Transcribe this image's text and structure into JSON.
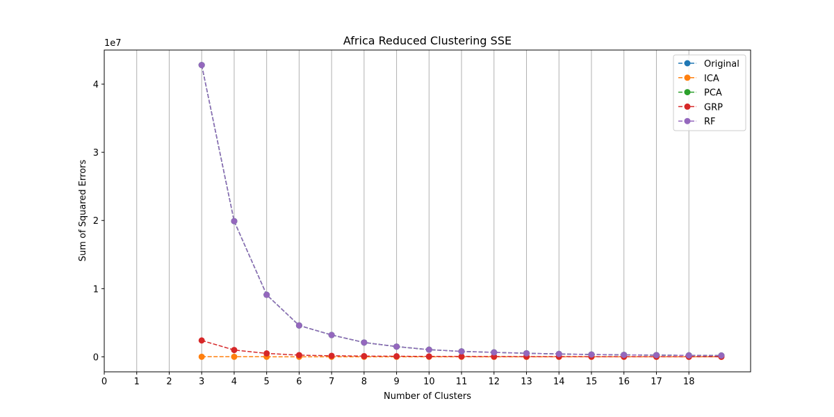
{
  "chart_data": {
    "type": "line",
    "title": "Africa Reduced Clustering SSE",
    "xlabel": "Number of Clusters",
    "ylabel": "Sum of Squared Errors",
    "y_offset_label": "1e7",
    "xlim": [
      0,
      19.9
    ],
    "ylim": [
      -2200000,
      45000000
    ],
    "xticks": [
      0,
      1,
      2,
      3,
      4,
      5,
      6,
      7,
      8,
      9,
      10,
      11,
      12,
      13,
      14,
      15,
      16,
      17,
      18
    ],
    "xtick_labels": [
      "0",
      "1",
      "2",
      "3",
      "4",
      "5",
      "6",
      "7",
      "8",
      "9",
      "10",
      "11",
      "12",
      "13",
      "14",
      "15",
      "16",
      "17",
      "18"
    ],
    "yticks": [
      0,
      10000000,
      20000000,
      30000000,
      40000000
    ],
    "ytick_labels": [
      "0",
      "1",
      "2",
      "3",
      "4"
    ],
    "grid": "vertical",
    "legend_position": "top-right",
    "x": [
      3,
      4,
      5,
      6,
      7,
      8,
      9,
      10,
      11,
      12,
      13,
      14,
      15,
      16,
      17,
      18,
      19
    ],
    "series": [
      {
        "name": "Original",
        "color": "#1f77b4",
        "values": [
          42800000,
          19900000,
          9100000,
          4600000,
          3200000,
          2100000,
          1500000,
          1050000,
          800000,
          650000,
          520000,
          420000,
          340000,
          290000,
          250000,
          220000,
          190000
        ]
      },
      {
        "name": "ICA",
        "color": "#ff7f0e",
        "values": [
          10000,
          9000,
          8000,
          7000,
          6000,
          5500,
          5000,
          4500,
          4000,
          3500,
          3000,
          2800,
          2600,
          2400,
          2200,
          2000,
          1800
        ]
      },
      {
        "name": "PCA",
        "color": "#2ca02c",
        "values": [
          42800000,
          19900000,
          9100000,
          4600000,
          3200000,
          2100000,
          1500000,
          1050000,
          800000,
          650000,
          520000,
          420000,
          340000,
          290000,
          250000,
          220000,
          190000
        ]
      },
      {
        "name": "GRP",
        "color": "#d62728",
        "values": [
          2400000,
          1000000,
          500000,
          250000,
          150000,
          100000,
          80000,
          60000,
          50000,
          40000,
          35000,
          30000,
          25000,
          20000,
          18000,
          15000,
          12000
        ]
      },
      {
        "name": "RF",
        "color": "#9467bd",
        "values": [
          42800000,
          19900000,
          9100000,
          4600000,
          3200000,
          2100000,
          1500000,
          1050000,
          800000,
          650000,
          520000,
          420000,
          340000,
          290000,
          250000,
          220000,
          190000
        ]
      }
    ]
  }
}
